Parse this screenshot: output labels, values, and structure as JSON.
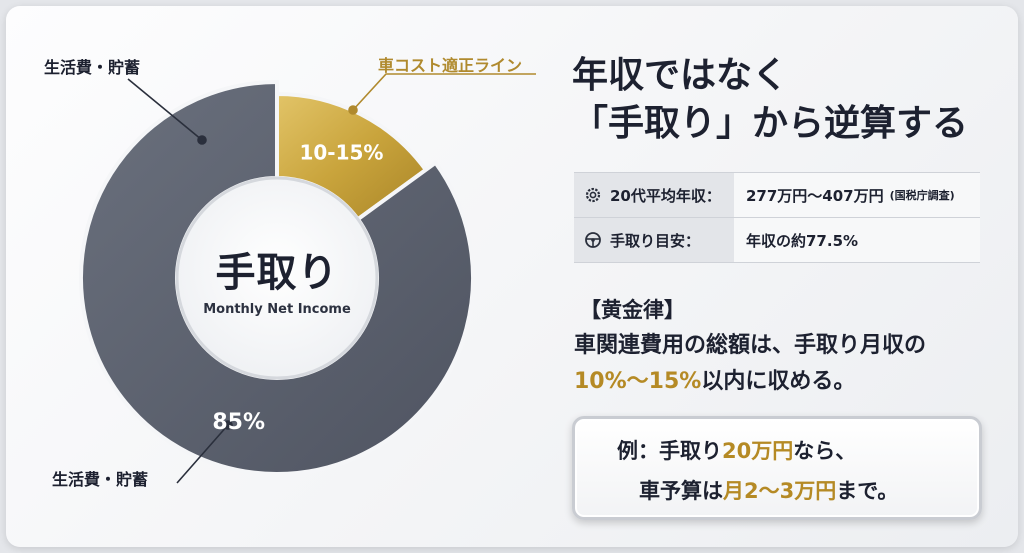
{
  "chart_data": {
    "type": "pie",
    "donut": true,
    "center_title": "手取り",
    "center_subtitle": "Monthly Net Income",
    "slices": [
      {
        "name": "車コスト適正ライン",
        "label": "10-15%",
        "value": 15,
        "color": "#c9a43c"
      },
      {
        "name": "生活費・貯蓄",
        "label": "85%",
        "value": 85,
        "color": "#5f6471"
      }
    ],
    "callouts": {
      "top_left": "生活費・貯蓄",
      "bottom_left": "生活費・貯蓄",
      "top_right": "車コスト適正ライン"
    }
  },
  "headline": {
    "line1": "年収ではなく",
    "line2": "「手取り」から逆算する"
  },
  "info_table": {
    "rows": [
      {
        "icon": "gear-icon",
        "key": "20代平均年収：",
        "value": "277万円〜407万円",
        "note": "(国税庁調査)"
      },
      {
        "icon": "steering-wheel-icon",
        "key": "手取り目安：",
        "value": "年収の約77.5%",
        "note": ""
      }
    ]
  },
  "golden_rule": {
    "heading": "【黄金律】",
    "line1": "車関連費用の総額は、手取り月収の",
    "line2_gold": "10%〜15%",
    "line2_rest": "以内に収める。"
  },
  "example": {
    "l1_a": "例：手取り",
    "l1_gold": "20万円",
    "l1_b": "なら、",
    "l2_a": "車予算は",
    "l2_gold": "月2〜3万円",
    "l2_b": "まで。"
  },
  "colors": {
    "gold": "#c9a43c",
    "gold_text": "#b58a25",
    "slate": "#5f6471",
    "dark_text": "#1d2130"
  }
}
